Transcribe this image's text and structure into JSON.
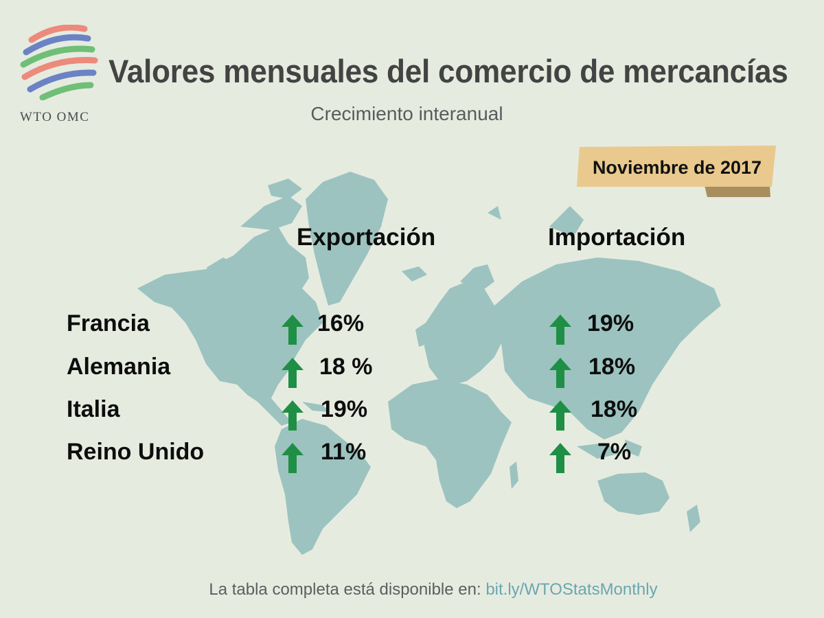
{
  "brand": {
    "logo_text": "WTO OMC"
  },
  "title": "Valores mensuales del comercio de mercancías",
  "subtitle": "Crecimiento interanual",
  "date_badge": "Noviembre de 2017",
  "columns": {
    "export": "Exportación",
    "import": "Importación"
  },
  "rows": [
    {
      "country": "Francia",
      "export": "16%",
      "import": "19%",
      "export_trend": "up",
      "import_trend": "up"
    },
    {
      "country": "Alemania",
      "export": "18 %",
      "import": "18%",
      "export_trend": "up",
      "import_trend": "up"
    },
    {
      "country": "Italia",
      "export": "19%",
      "import": "18%",
      "export_trend": "up",
      "import_trend": "up"
    },
    {
      "country": "Reino Unido",
      "export": "11%",
      "import": "7%",
      "export_trend": "up",
      "import_trend": "up"
    }
  ],
  "footer": {
    "text": "La tabla completa está disponible en: ",
    "link": "bit.ly/WTOStatsMonthly"
  },
  "colors": {
    "background": "#e6ebe0",
    "map": "#9cc3bf",
    "arrow": "#1e8f45",
    "ribbon": "#e9c98d",
    "ribbon_fold": "#a88e5f",
    "link": "#6aa7ae",
    "title": "#434343"
  },
  "icons": {
    "logo": "wto-logo-icon",
    "trend": "up-arrow-icon"
  }
}
